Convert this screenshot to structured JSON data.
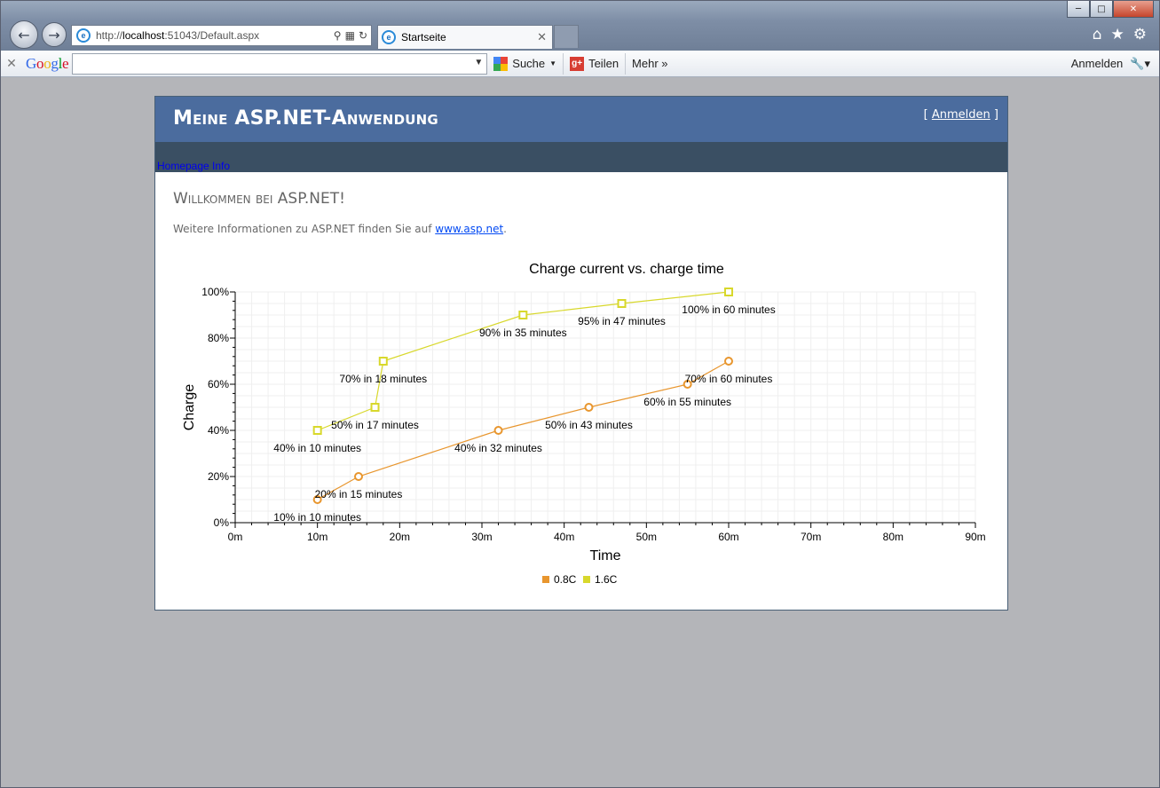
{
  "browser": {
    "address": {
      "prefix": "http://",
      "host": "localhost",
      "rest": ":51043/Default.aspx"
    },
    "tab": {
      "title": "Startseite"
    },
    "toolbar": {
      "google_letters": [
        "G",
        "o",
        "o",
        "g",
        "l",
        "e"
      ],
      "search_label": "Suche",
      "share_label": "Teilen",
      "more_label": "Mehr »",
      "signin_label": "Anmelden"
    }
  },
  "site": {
    "title": "Meine ASP.NET-Anwendung",
    "login": {
      "open": "[ ",
      "link": "Anmelden",
      "close": " ]"
    },
    "menu_item": "Homepage Info",
    "welcome": "Willkommen bei ASP.NET!",
    "info_prefix": "Weitere Informationen zu ASP.NET finden Sie auf ",
    "info_link": "www.asp.net",
    "info_suffix": "."
  },
  "colors": {
    "header": "#4b6c9e",
    "menu": "#3a4f63",
    "series_08c": "#e8962e",
    "series_16c": "#d8d82c"
  },
  "chart_data": {
    "type": "line",
    "title": "Charge current vs. charge time",
    "xlabel": "Time",
    "ylabel": "Charge",
    "xlim": [
      0,
      90
    ],
    "ylim": [
      0,
      100
    ],
    "x_ticks": [
      "0m",
      "10m",
      "20m",
      "30m",
      "40m",
      "50m",
      "60m",
      "70m",
      "80m",
      "90m"
    ],
    "y_ticks": [
      "0%",
      "20%",
      "40%",
      "60%",
      "80%",
      "100%"
    ],
    "legend_position": "bottom",
    "grid": true,
    "series": [
      {
        "name": "0.8C",
        "color": "#e8962e",
        "marker": "circle",
        "points": [
          {
            "x": 10,
            "y": 10,
            "label": "10% in 10 minutes"
          },
          {
            "x": 15,
            "y": 20,
            "label": "20% in 15 minutes"
          },
          {
            "x": 32,
            "y": 40,
            "label": "40% in 32 minutes"
          },
          {
            "x": 43,
            "y": 50,
            "label": "50% in 43 minutes"
          },
          {
            "x": 55,
            "y": 60,
            "label": "60% in 55 minutes"
          },
          {
            "x": 60,
            "y": 70,
            "label": "70% in 60 minutes"
          }
        ]
      },
      {
        "name": "1.6C",
        "color": "#d8d82c",
        "marker": "square",
        "points": [
          {
            "x": 10,
            "y": 40,
            "label": "40% in 10 minutes"
          },
          {
            "x": 17,
            "y": 50,
            "label": "50% in 17 minutes"
          },
          {
            "x": 18,
            "y": 70,
            "label": "70% in 18 minutes"
          },
          {
            "x": 35,
            "y": 90,
            "label": "90% in 35 minutes"
          },
          {
            "x": 47,
            "y": 95,
            "label": "95% in 47 minutes"
          },
          {
            "x": 60,
            "y": 100,
            "label": "100% in 60 minutes"
          }
        ]
      }
    ]
  }
}
